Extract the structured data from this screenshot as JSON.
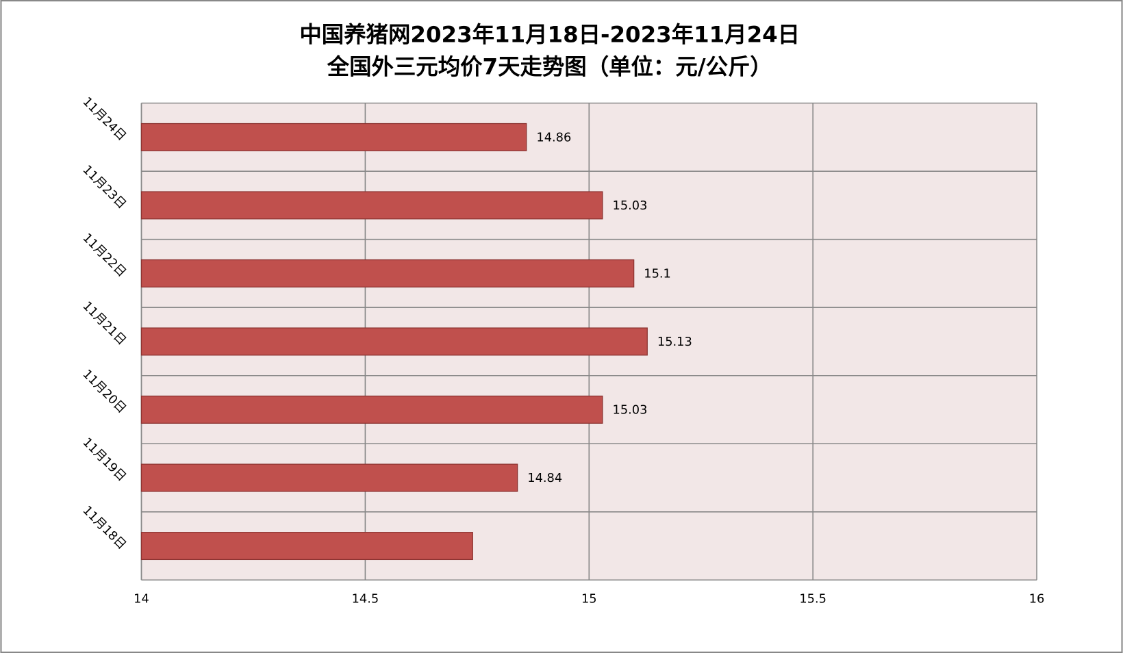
{
  "chart_data": {
    "type": "hbar",
    "title": [
      "中国养猪网2023年11月18日-2023年11月24日",
      "全国外三元均价7天走势图（单位：元/公斤）"
    ],
    "categories": [
      "11月18日",
      "11月19日",
      "11月20日",
      "11月21日",
      "11月22日",
      "11月23日",
      "11月24日"
    ],
    "values": [
      14.74,
      14.84,
      15.03,
      15.13,
      15.1,
      15.03,
      14.86
    ],
    "value_labels": [
      null,
      "14.84",
      "15.03",
      "15.13",
      "15.1",
      "15.03",
      "14.86"
    ],
    "color": "#c0504d",
    "xlim": [
      14,
      16
    ],
    "xticks": [
      14,
      14.5,
      15,
      15.5,
      16
    ],
    "grid": true
  }
}
